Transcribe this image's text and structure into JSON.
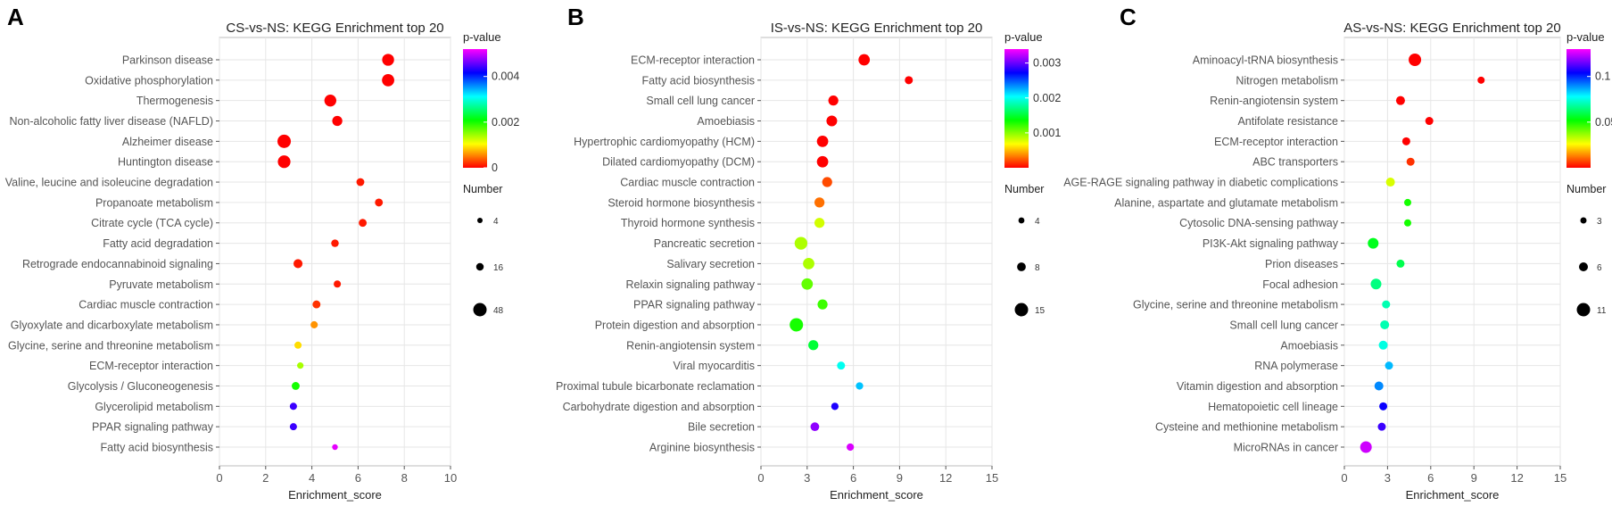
{
  "figure_title": "KEGG enrichment bubble charts (panels A, B, C)",
  "chart_data": [
    {
      "type": "scatter",
      "panel_label": "A",
      "title": "CS-vs-NS: KEGG Enrichment top 20",
      "xlabel": "Enrichment_score",
      "ylabel": "",
      "xlim": [
        0,
        10
      ],
      "xticks": [
        0,
        2,
        4,
        6,
        8,
        10
      ],
      "color_legend_title": "p-value",
      "color_range": [
        0,
        0.0052
      ],
      "color_ticks": [
        0,
        0.002,
        0.004
      ],
      "color_tick_labels": [
        "0",
        "0.002",
        "0.004"
      ],
      "size_legend_title": "Number",
      "size_legend": [
        4,
        16,
        48
      ],
      "size_range": [
        4,
        48
      ],
      "pathways": [
        "Parkinson disease",
        "Oxidative phosphorylation",
        "Thermogenesis",
        "Non-alcoholic fatty liver disease (NAFLD)",
        "Alzheimer disease",
        "Huntington disease",
        "Valine, leucine and isoleucine degradation",
        "Propanoate metabolism",
        "Citrate cycle (TCA cycle)",
        "Fatty acid degradation",
        "Retrograde endocannabinoid signaling",
        "Pyruvate metabolism",
        "Cardiac muscle contraction",
        "Glyoxylate and dicarboxylate metabolism",
        "Glycine, serine and threonine metabolism",
        "ECM-receptor interaction",
        "Glycolysis / Gluconeogenesis",
        "Glycerolipid metabolism",
        "PPAR signaling pathway",
        "Fatty acid biosynthesis"
      ],
      "enrichment_score": [
        7.3,
        7.3,
        4.8,
        5.1,
        2.8,
        2.8,
        6.1,
        6.9,
        6.2,
        5.0,
        3.4,
        5.1,
        4.2,
        4.1,
        3.4,
        3.5,
        3.3,
        3.2,
        3.2,
        5.0
      ],
      "p_value": [
        0.0,
        0.0,
        0.0,
        0.0,
        0.0,
        0.0,
        0.0001,
        0.0001,
        0.0001,
        0.0001,
        0.0001,
        0.0001,
        0.0002,
        0.0006,
        0.0009,
        0.0014,
        0.002,
        0.0044,
        0.0044,
        0.0051
      ],
      "number": [
        40,
        42,
        40,
        30,
        48,
        44,
        18,
        18,
        18,
        16,
        24,
        14,
        18,
        14,
        14,
        10,
        18,
        14,
        14,
        6
      ]
    },
    {
      "type": "scatter",
      "panel_label": "B",
      "title": "IS-vs-NS: KEGG Enrichment top 20",
      "xlabel": "Enrichment_score",
      "ylabel": "",
      "xlim": [
        0,
        15
      ],
      "xticks": [
        0,
        3,
        6,
        9,
        12,
        15
      ],
      "color_legend_title": "p-value",
      "color_range": [
        0,
        0.0034
      ],
      "color_ticks": [
        0.001,
        0.002,
        0.003
      ],
      "color_tick_labels": [
        "0.001",
        "0.002",
        "0.003"
      ],
      "size_legend_title": "Number",
      "size_legend": [
        4,
        8,
        15
      ],
      "size_range": [
        3,
        15
      ],
      "pathways": [
        "ECM-receptor interaction",
        "Fatty acid biosynthesis",
        "Small cell lung cancer",
        "Amoebiasis",
        "Hypertrophic cardiomyopathy (HCM)",
        "Dilated cardiomyopathy (DCM)",
        "Cardiac muscle contraction",
        "Steroid hormone biosynthesis",
        "Thyroid hormone synthesis",
        "Pancreatic secretion",
        "Salivary secretion",
        "Relaxin signaling pathway",
        "PPAR signaling pathway",
        "Protein digestion and absorption",
        "Renin-angiotensin system",
        "Viral myocarditis",
        "Proximal tubule bicarbonate reclamation",
        "Carbohydrate digestion and absorption",
        "Bile secretion",
        "Arginine biosynthesis"
      ],
      "enrichment_score": [
        6.7,
        9.6,
        4.7,
        4.6,
        4.0,
        4.0,
        4.3,
        3.8,
        3.8,
        2.6,
        3.1,
        3.0,
        4.0,
        2.3,
        3.4,
        5.2,
        6.4,
        4.8,
        3.5,
        5.8
      ],
      "p_value": [
        0.0,
        0.0,
        0.0,
        0.0,
        0.0,
        0.0,
        0.0002,
        0.0003,
        0.0008,
        0.0009,
        0.0009,
        0.0011,
        0.0012,
        0.0013,
        0.0015,
        0.002,
        0.0022,
        0.0028,
        0.0031,
        0.0033
      ],
      "number": [
        12,
        7,
        10,
        11,
        12,
        12,
        10,
        10,
        10,
        14,
        12,
        12,
        10,
        15,
        10,
        7,
        6,
        6,
        8,
        6
      ]
    },
    {
      "type": "scatter",
      "panel_label": "C",
      "title": "AS-vs-NS: KEGG Enrichment top 20",
      "xlabel": "Enrichment_score",
      "ylabel": "",
      "xlim": [
        0,
        15
      ],
      "xticks": [
        0,
        3,
        6,
        9,
        12,
        15
      ],
      "color_legend_title": "p-value",
      "color_range": [
        0,
        0.13
      ],
      "color_ticks": [
        0.05,
        0.1
      ],
      "color_tick_labels": [
        "0.05",
        "0.1"
      ],
      "size_legend_title": "Number",
      "size_legend": [
        3,
        6,
        11
      ],
      "size_range": [
        2,
        11
      ],
      "pathways": [
        "Aminoacyl-tRNA biosynthesis",
        "Nitrogen metabolism",
        "Renin-angiotensin system",
        "Antifolate resistance",
        "ECM-receptor interaction",
        "ABC transporters",
        "AGE-RAGE signaling pathway in diabetic complications",
        "Alanine, aspartate and glutamate metabolism",
        "Cytosolic DNA-sensing pathway",
        "PI3K-Akt signaling pathway",
        "Prion diseases",
        "Focal adhesion",
        "Glycine, serine and threonine metabolism",
        "Small cell lung cancer",
        "Amoebiasis",
        "RNA polymerase",
        "Vitamin digestion and absorption",
        "Hematopoietic cell lineage",
        "Cysteine and methionine metabolism",
        "MicroRNAs in cancer"
      ],
      "enrichment_score": [
        4.9,
        9.5,
        3.9,
        5.9,
        4.3,
        4.6,
        3.2,
        4.4,
        4.4,
        2.0,
        3.9,
        2.2,
        2.9,
        2.8,
        2.7,
        3.1,
        2.4,
        2.7,
        2.6,
        1.5
      ],
      "p_value": [
        0.0,
        0.0,
        0.0,
        0.0,
        0.0,
        0.005,
        0.03,
        0.05,
        0.05,
        0.055,
        0.06,
        0.065,
        0.07,
        0.07,
        0.075,
        0.085,
        0.09,
        0.105,
        0.11,
        0.125
      ],
      "number": [
        10,
        4,
        6,
        5,
        5,
        5,
        6,
        4,
        4,
        8,
        5,
        8,
        5,
        6,
        6,
        5,
        6,
        5,
        5,
        9
      ]
    }
  ]
}
